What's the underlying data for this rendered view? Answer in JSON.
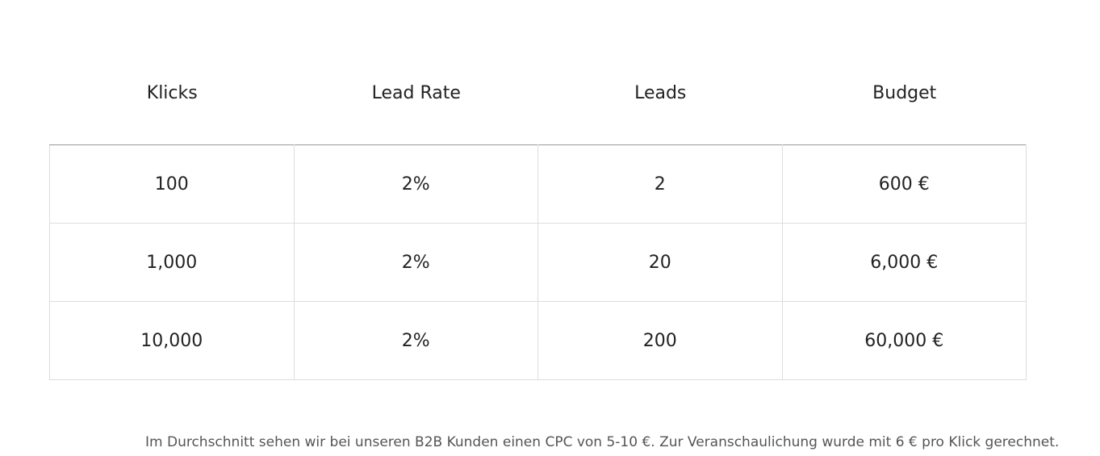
{
  "table": {
    "header": [
      "Klicks",
      "Lead Rate",
      "Leads",
      "Budget"
    ],
    "rows": [
      [
        "100",
        "2%",
        "2",
        "600 €"
      ],
      [
        "1,000",
        "2%",
        "20",
        "6,000 €"
      ],
      [
        "10,000",
        "2%",
        "200",
        "60,000 €"
      ]
    ]
  },
  "note": "Im Durchschnitt sehen wir bei unseren B2B Kunden einen CPC von 5-10 €. Zur Veranschaulichung wurde mit 6 € pro Klick gerechnet."
}
